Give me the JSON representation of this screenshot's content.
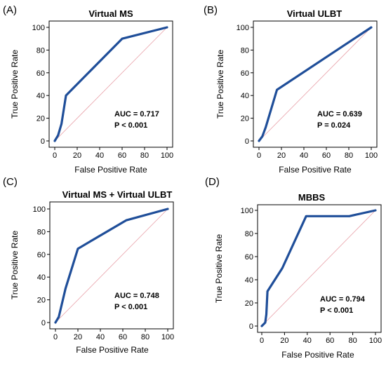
{
  "colors": {
    "roc_line": "#1f4e99",
    "reference_line": "#e8a0a8"
  },
  "chart_data": [
    {
      "type": "line",
      "panel": "(A)",
      "title": "Virtual MS",
      "xlabel": "False Positive Rate",
      "ylabel": "True Positive Rate",
      "xlim": [
        0,
        100
      ],
      "ylim": [
        0,
        100
      ],
      "xticks": [
        0,
        20,
        40,
        60,
        80,
        100
      ],
      "yticks": [
        0,
        20,
        40,
        60,
        80,
        100
      ],
      "grid": false,
      "reference_diagonal": true,
      "series": [
        {
          "x": [
            0,
            3,
            6,
            10,
            60,
            100
          ],
          "y": [
            0,
            5,
            15,
            40,
            90,
            100
          ]
        }
      ],
      "annotations": [
        "AUC = 0.717",
        "P < 0.001"
      ]
    },
    {
      "type": "line",
      "panel": "(B)",
      "title": "Virtual ULBT",
      "xlabel": "False Positive Rate",
      "ylabel": "True Positive Rate",
      "xlim": [
        0,
        100
      ],
      "ylim": [
        0,
        100
      ],
      "xticks": [
        0,
        20,
        40,
        60,
        80,
        100
      ],
      "yticks": [
        0,
        20,
        40,
        60,
        80,
        100
      ],
      "grid": false,
      "reference_diagonal": true,
      "series": [
        {
          "x": [
            0,
            3,
            6,
            16,
            100
          ],
          "y": [
            0,
            4,
            12,
            45,
            100
          ]
        }
      ],
      "annotations": [
        "AUC = 0.639",
        "P = 0.024"
      ]
    },
    {
      "type": "line",
      "panel": "(C)",
      "title": "Virtual MS + Virtual ULBT",
      "xlabel": "False Positive Rate",
      "ylabel": "True Positive Rate",
      "xlim": [
        0,
        100
      ],
      "ylim": [
        0,
        100
      ],
      "xticks": [
        0,
        20,
        40,
        60,
        80,
        100
      ],
      "yticks": [
        0,
        20,
        40,
        60,
        80,
        100
      ],
      "grid": false,
      "reference_diagonal": true,
      "series": [
        {
          "x": [
            0,
            3,
            9,
            20,
            63,
            100
          ],
          "y": [
            0,
            5,
            30,
            65,
            90,
            100
          ]
        }
      ],
      "annotations": [
        "AUC = 0.748",
        "P < 0.001"
      ]
    },
    {
      "type": "line",
      "panel": "(D)",
      "title": "MBBS",
      "xlabel": "False Positive Rate",
      "ylabel": "True Positive Rate",
      "xlim": [
        0,
        100
      ],
      "ylim": [
        0,
        100
      ],
      "xticks": [
        0,
        20,
        40,
        60,
        80,
        100
      ],
      "yticks": [
        0,
        20,
        40,
        60,
        80,
        100
      ],
      "grid": false,
      "reference_diagonal": true,
      "series": [
        {
          "x": [
            0,
            3,
            4,
            5,
            18,
            39,
            77,
            100
          ],
          "y": [
            0,
            3,
            10,
            30,
            50,
            95,
            95,
            100
          ]
        }
      ],
      "annotations": [
        "AUC = 0.794",
        "P < 0.001"
      ]
    }
  ]
}
